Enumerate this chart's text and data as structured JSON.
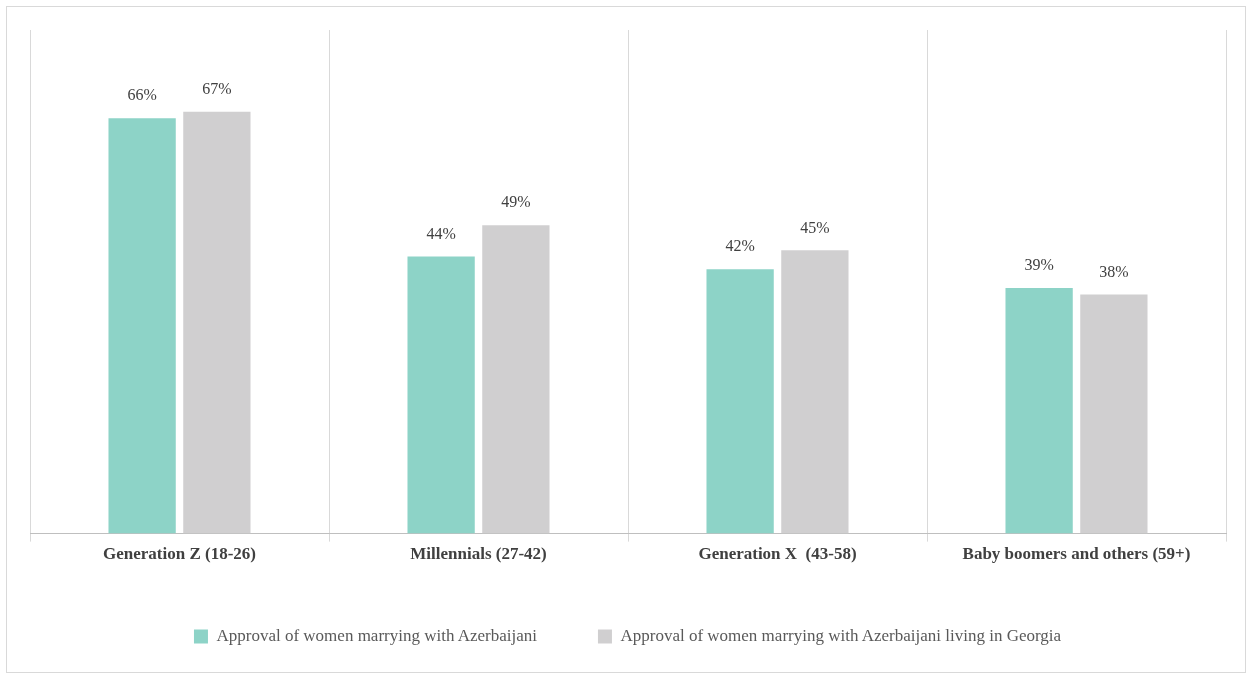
{
  "chart_data": {
    "type": "bar",
    "categories": [
      "Generation Z (18-26)",
      "Millennials (27-42)",
      "Generation X  (43-58)",
      "Baby boomers and others (59+)"
    ],
    "series": [
      {
        "name": "Approval of women marrying with Azerbaijani",
        "color": "#8dd3c7",
        "values": [
          66,
          44,
          42,
          39
        ],
        "value_labels": [
          "66%",
          "44%",
          "42%",
          "39%"
        ]
      },
      {
        "name": "Approval of women marrying with Azerbaijani living in Georgia",
        "color": "#d0cfd0",
        "values": [
          67,
          49,
          45,
          38
        ],
        "value_labels": [
          "67%",
          "49%",
          "45%",
          "38%"
        ]
      }
    ],
    "ylim": [
      0,
      80
    ],
    "grid": "x",
    "legend": "bottom"
  }
}
